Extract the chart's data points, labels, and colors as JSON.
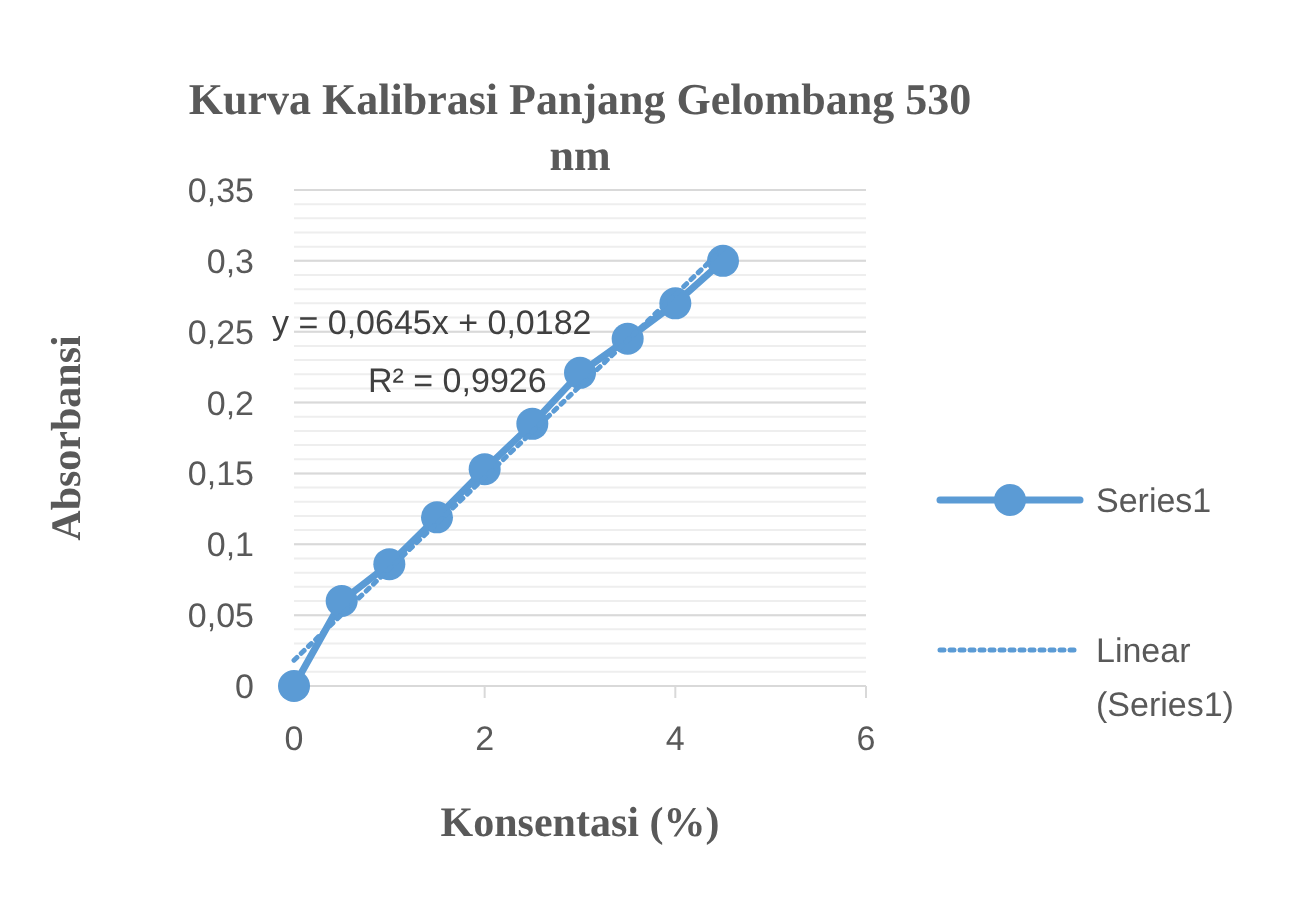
{
  "chart_data": {
    "type": "line",
    "title": "Kurva Kalibrasi Panjang Gelombang 530 nm",
    "xlabel": "Konsentasi (%)",
    "ylabel": "Absorbansi",
    "x": [
      0,
      0.5,
      1,
      1.5,
      2,
      2.5,
      3,
      3.5,
      4,
      4.5
    ],
    "series": [
      {
        "name": "Series1",
        "color": "#5b9bd5",
        "values": [
          0,
          0.06,
          0.086,
          0.119,
          0.153,
          0.185,
          0.221,
          0.245,
          0.27,
          0.3
        ],
        "marker": "circle",
        "line_style": "solid"
      },
      {
        "name": "Linear (Series1)",
        "type": "line",
        "color": "#5b9bd5",
        "x": [
          0,
          4.5
        ],
        "values": [
          0.0182,
          0.3085
        ],
        "marker": "none",
        "line_style": "dotted"
      }
    ],
    "xlim": [
      0,
      6
    ],
    "xticks": [
      0,
      2,
      4,
      6
    ],
    "ylim": [
      0,
      0.35
    ],
    "yticks": [
      0,
      {
        "value": 0.05,
        "label": "0,05"
      },
      {
        "value": 0.1,
        "label": "0,1"
      },
      {
        "value": 0.15,
        "label": "0,15"
      },
      {
        "value": 0.2,
        "label": "0,2"
      },
      {
        "value": 0.25,
        "label": "0,25"
      },
      {
        "value": 0.3,
        "label": "0,3"
      },
      {
        "value": 0.35,
        "label": "0,35"
      }
    ],
    "grid": "y",
    "legend": "right",
    "annotations": [
      "y = 0,0645x + 0,0182",
      "R² = 0,9926"
    ]
  }
}
